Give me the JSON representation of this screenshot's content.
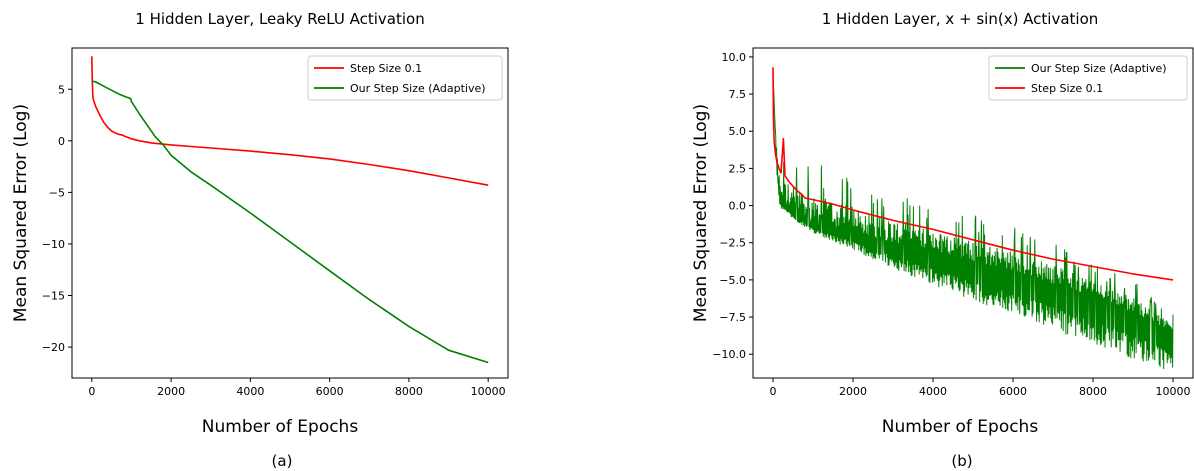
{
  "chart_data": [
    {
      "type": "line",
      "panel_caption": "(a)",
      "title": "1 Hidden Layer, Leaky ReLU Activation",
      "xlabel": "Number of Epochs",
      "ylabel": "Mean Squared Error (Log)",
      "xlim": [
        -500,
        10500
      ],
      "ylim": [
        -23,
        9
      ],
      "x_ticks": [
        0,
        2000,
        4000,
        6000,
        8000,
        10000
      ],
      "y_ticks": [
        5,
        0,
        -5,
        -10,
        -15,
        -20
      ],
      "legend_position": "top-right",
      "grid": false,
      "series": [
        {
          "name": "Step Size 0.1",
          "color": "#ff0000",
          "x": [
            0,
            15,
            30,
            100,
            200,
            300,
            400,
            500,
            600,
            700,
            780,
            800,
            900,
            1000,
            1200,
            1500,
            2000,
            3000,
            4000,
            5000,
            6000,
            7000,
            8000,
            9000,
            10000
          ],
          "y": [
            8.2,
            5.5,
            4.1,
            3.3,
            2.5,
            1.8,
            1.3,
            0.95,
            0.75,
            0.6,
            0.55,
            0.5,
            0.35,
            0.2,
            0.0,
            -0.2,
            -0.4,
            -0.7,
            -1.0,
            -1.35,
            -1.75,
            -2.3,
            -2.9,
            -3.6,
            -4.3
          ]
        },
        {
          "name": "Our Step Size (Adaptive)",
          "color": "#008000",
          "x": [
            0,
            100,
            300,
            500,
            700,
            900,
            980,
            1000,
            1200,
            1400,
            1600,
            1800,
            2000,
            2500,
            3000,
            4000,
            5000,
            6000,
            7000,
            8000,
            9000,
            10000
          ],
          "y": [
            5.8,
            5.7,
            5.3,
            4.9,
            4.5,
            4.2,
            4.1,
            3.8,
            2.6,
            1.5,
            0.4,
            -0.4,
            -1.4,
            -3.0,
            -4.3,
            -7.0,
            -9.8,
            -12.6,
            -15.4,
            -18.0,
            -20.3,
            -21.5
          ]
        }
      ]
    },
    {
      "type": "line",
      "panel_caption": "(b)",
      "title": "1 Hidden Layer, x + sin(x) Activation",
      "xlabel": "Number of Epochs",
      "ylabel": "Mean Squared Error (Log)",
      "xlim": [
        -500,
        10500
      ],
      "ylim": [
        -11.6,
        10.6
      ],
      "x_ticks": [
        0,
        2000,
        4000,
        6000,
        8000,
        10000
      ],
      "y_ticks": [
        10.0,
        7.5,
        5.0,
        2.5,
        0.0,
        -2.5,
        -5.0,
        -7.5,
        -10.0
      ],
      "y_tick_labels": [
        "10.0",
        "7.5",
        "5.0",
        "2.5",
        "0.0",
        "−2.5",
        "−5.0",
        "−7.5",
        "−10.0"
      ],
      "legend_position": "top-right",
      "grid": false,
      "series": [
        {
          "name": "Our Step Size (Adaptive)",
          "color": "#008000",
          "style": "noisy",
          "x": [
            0,
            50,
            100,
            150,
            200,
            300,
            500,
            1000,
            2000,
            3000,
            4000,
            5000,
            6000,
            7000,
            8000,
            9000,
            10000
          ],
          "y": [
            9.0,
            5.5,
            3.0,
            1.0,
            0.3,
            0.0,
            -0.4,
            -1.2,
            -1.8,
            -2.5,
            -3.1,
            -3.8,
            -4.5,
            -5.3,
            -6.1,
            -7.2,
            -8.5
          ],
          "upper": [
            9.0,
            6.0,
            4.2,
            4.0,
            3.8,
            3.6,
            3.4,
            3.0,
            2.0,
            0.8,
            0.0,
            -0.6,
            -1.4,
            -2.4,
            -3.8,
            -5.0,
            -7.3
          ],
          "lower": [
            9.0,
            4.5,
            2.0,
            0.2,
            -0.2,
            -0.4,
            -0.9,
            -1.8,
            -3.0,
            -4.2,
            -5.4,
            -6.4,
            -7.3,
            -8.3,
            -9.4,
            -10.3,
            -11.2
          ]
        },
        {
          "name": "Step Size 0.1",
          "color": "#ff0000",
          "x": [
            0,
            10,
            30,
            60,
            100,
            150,
            200,
            260,
            300,
            350,
            400,
            500,
            600,
            700,
            800,
            1000,
            1500,
            2000,
            3000,
            4000,
            5000,
            6000,
            7000,
            8000,
            9000,
            10000
          ],
          "y": [
            9.3,
            6.0,
            4.3,
            3.5,
            2.9,
            2.5,
            2.2,
            4.5,
            2.0,
            1.8,
            1.6,
            1.3,
            1.0,
            0.8,
            0.5,
            0.4,
            0.1,
            -0.3,
            -1.0,
            -1.6,
            -2.3,
            -3.0,
            -3.6,
            -4.1,
            -4.6,
            -5.0
          ]
        }
      ]
    }
  ]
}
